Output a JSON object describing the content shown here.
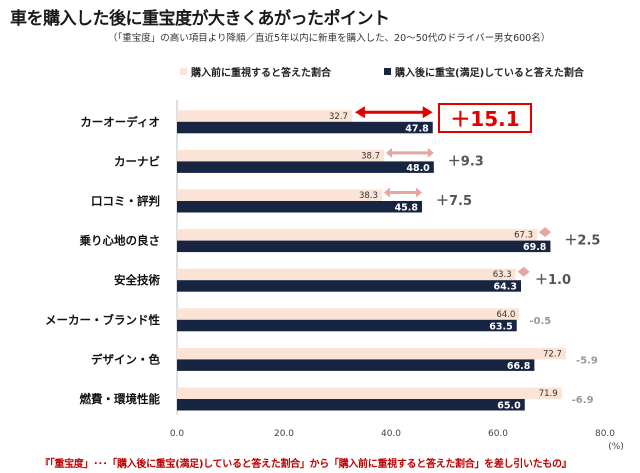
{
  "title": "車を購入した後に重宝度が大きくあがったポイント",
  "subtitle": "（「重宝度」の高い項目より降順／直近5年以内に新車を購入した、20～50代のドライバー男女600名）",
  "footnote": "『「重宝度」･･･「購入後に重宝(満足)していると答えた割合」から「購入前に重視すると答えた割合」を差し引いたもの』",
  "colors": {
    "before": "#fbe3d6",
    "after": "#172442",
    "arrow": "#e8a5a0",
    "highlight": "#e00000",
    "diff_dark": "#555555",
    "diff_light": "#999999"
  },
  "chart_data": {
    "type": "bar",
    "orientation": "horizontal",
    "categories": [
      "カーオーディオ",
      "カーナビ",
      "口コミ・評判",
      "乗り心地の良さ",
      "安全技術",
      "メーカー・ブランド性",
      "デザイン・色",
      "燃費・環境性能"
    ],
    "series": [
      {
        "name": "購入前に重視すると答えた割合",
        "values": [
          32.7,
          38.7,
          38.3,
          67.3,
          63.3,
          64.0,
          72.7,
          71.9
        ]
      },
      {
        "name": "購入後に重宝(満足)していると答えた割合",
        "values": [
          47.8,
          48.0,
          45.8,
          69.8,
          64.3,
          63.5,
          66.8,
          65.0
        ]
      }
    ],
    "differences": [
      "＋15.1",
      "＋9.3",
      "＋7.5",
      "＋2.5",
      "＋1.0",
      "-0.5",
      "-5.9",
      "-6.9"
    ],
    "xlim": [
      0,
      80
    ],
    "x_ticks": [
      "0.0",
      "20.0",
      "40.0",
      "60.0",
      "80.0"
    ],
    "x_unit": "(%)",
    "legend_position": "top"
  }
}
